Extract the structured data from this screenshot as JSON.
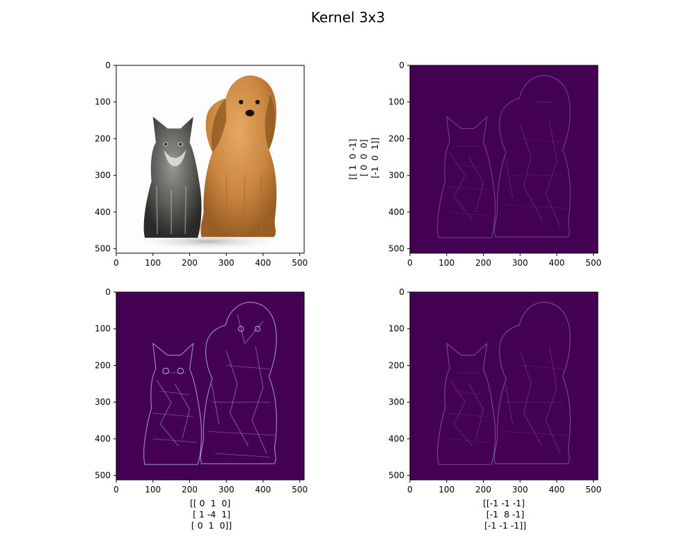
{
  "figure": {
    "title": "Kernel 3x3"
  },
  "chart_data": [
    {
      "type": "image",
      "content": "original photo: kitten and puppy on white background",
      "xlim": [
        0,
        512
      ],
      "ylim": [
        512,
        0
      ],
      "xticks": [
        0,
        100,
        200,
        300,
        400,
        500
      ],
      "yticks": [
        0,
        100,
        200,
        300,
        400,
        500
      ],
      "xlabel": [],
      "ylabel": []
    },
    {
      "type": "heatmap",
      "colormap": "viridis",
      "content": "edge map after convolution with kernel",
      "xlim": [
        0,
        512
      ],
      "ylim": [
        512,
        0
      ],
      "xticks": [
        0,
        100,
        200,
        300,
        400,
        500
      ],
      "yticks": [
        0,
        100,
        200,
        300,
        400,
        500
      ],
      "xlabel": [],
      "ylabel": [
        "[[ 1  0 -1]",
        " [ 0  0  0]",
        " [-1  0  1]]"
      ]
    },
    {
      "type": "heatmap",
      "colormap": "viridis",
      "content": "edge map after convolution with kernel",
      "xlim": [
        0,
        512
      ],
      "ylim": [
        512,
        0
      ],
      "xticks": [
        0,
        100,
        200,
        300,
        400,
        500
      ],
      "yticks": [
        0,
        100,
        200,
        300,
        400,
        500
      ],
      "xlabel": [
        "[[ 0  1  0]",
        " [ 1 -4  1]",
        " [ 0  1  0]]"
      ],
      "ylabel": []
    },
    {
      "type": "heatmap",
      "colormap": "viridis",
      "content": "edge map after convolution with kernel",
      "xlim": [
        0,
        512
      ],
      "ylim": [
        512,
        0
      ],
      "xticks": [
        0,
        100,
        200,
        300,
        400,
        500
      ],
      "yticks": [
        0,
        100,
        200,
        300,
        400,
        500
      ],
      "xlabel": [
        "[[-1 -1 -1]",
        " [-1  8 -1]",
        " [-1 -1 -1]]"
      ],
      "ylabel": []
    }
  ],
  "colors": {
    "viridis_min": "#440154",
    "edge_light": "#c8b4ff",
    "edge_mid": "#6a5acd"
  }
}
